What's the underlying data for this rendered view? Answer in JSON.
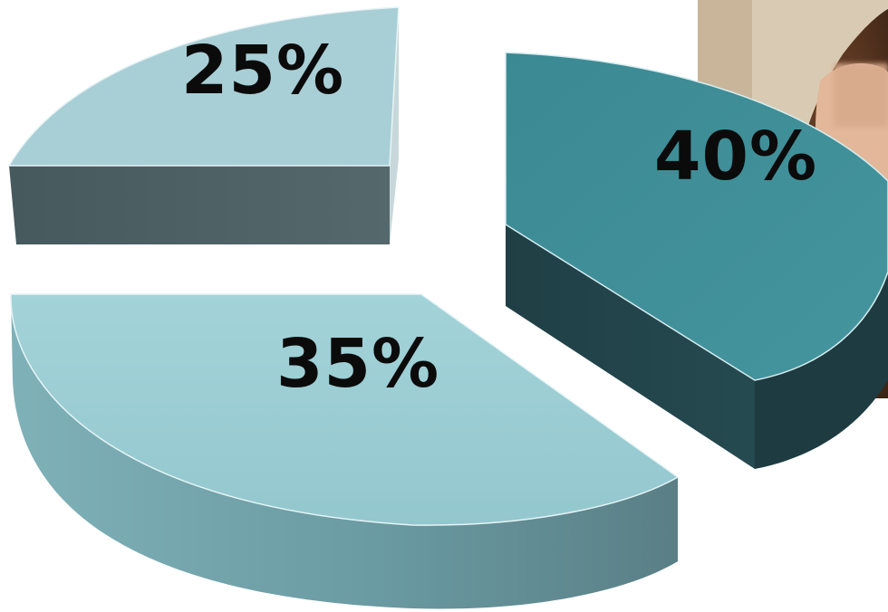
{
  "chart_data": {
    "type": "pie",
    "style": "3d-exploded",
    "title": "",
    "slices": [
      {
        "label": "25%",
        "value": 25,
        "color": "#a8cfd6"
      },
      {
        "label": "40%",
        "value": 40,
        "color": "#3f8f98"
      },
      {
        "label": "35%",
        "value": 35,
        "color": "#98ccd2"
      }
    ],
    "legend": "none"
  },
  "photo": {
    "subject": "person-photo",
    "placement": "top-right"
  }
}
